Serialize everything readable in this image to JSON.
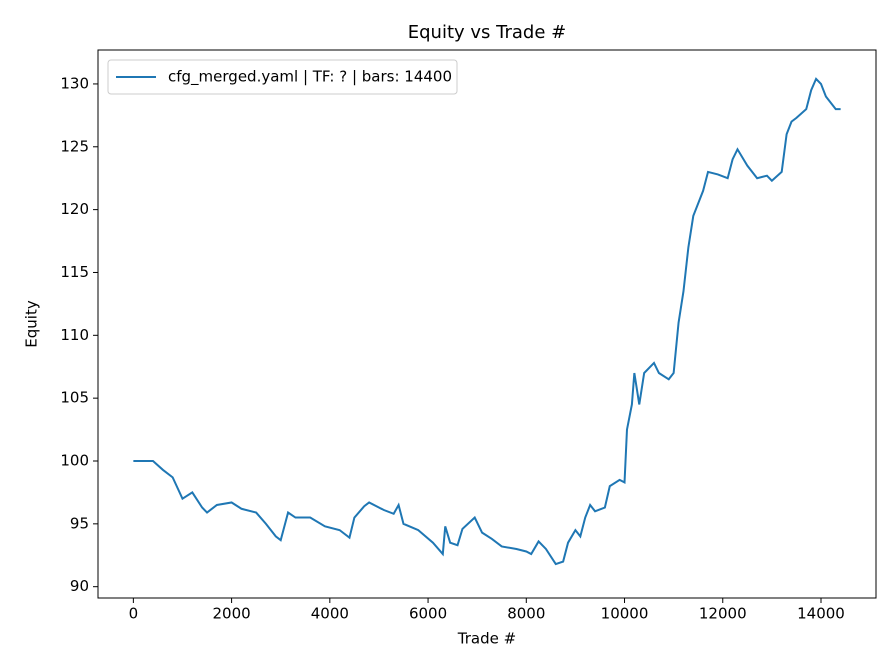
{
  "chart_data": {
    "type": "line",
    "title": "Equity vs Trade #",
    "x_label": "Trade #",
    "y_label": "Equity",
    "legend": "upper left",
    "xlim": [
      -720,
      15120
    ],
    "xticks": [
      0,
      2000,
      4000,
      6000,
      8000,
      10000,
      12000,
      14000
    ],
    "ylim": [
      89.1,
      132.7
    ],
    "yticks": [
      90,
      95,
      100,
      105,
      110,
      115,
      120,
      125,
      130
    ],
    "x": [
      0,
      400,
      600,
      800,
      1000,
      1200,
      1400,
      1500,
      1700,
      2000,
      2200,
      2500,
      2700,
      2900,
      3000,
      3150,
      3300,
      3600,
      3900,
      4200,
      4400,
      4500,
      4700,
      4800,
      5100,
      5300,
      5400,
      5500,
      5800,
      6100,
      6300,
      6350,
      6450,
      6600,
      6700,
      6950,
      7100,
      7300,
      7500,
      7800,
      8000,
      8100,
      8250,
      8400,
      8600,
      8750,
      8850,
      9000,
      9100,
      9200,
      9300,
      9400,
      9600,
      9700,
      9900,
      10000,
      10050,
      10150,
      10200,
      10300,
      10400,
      10600,
      10700,
      10900,
      11000,
      11100,
      11200,
      11300,
      11400,
      11500,
      11600,
      11700,
      11900,
      12100,
      12200,
      12300,
      12500,
      12700,
      12900,
      13000,
      13200,
      13300,
      13400,
      13500,
      13700,
      13800,
      13900,
      14000,
      14100,
      14300,
      14400
    ],
    "series": [
      {
        "name": "cfg_merged.yaml | TF: ? | bars: 14400",
        "color": "#1f77b4",
        "values": [
          100,
          100,
          99.3,
          98.7,
          97,
          97.5,
          96.3,
          95.9,
          96.5,
          96.7,
          96.2,
          95.9,
          95,
          94,
          93.7,
          95.9,
          95.5,
          95.5,
          94.8,
          94.5,
          93.9,
          95.5,
          96.4,
          96.7,
          96.1,
          95.8,
          96.5,
          95,
          94.5,
          93.5,
          92.6,
          94.8,
          93.5,
          93.3,
          94.6,
          95.5,
          94.3,
          93.8,
          93.2,
          93,
          92.8,
          92.6,
          93.6,
          93,
          91.8,
          92,
          93.5,
          94.5,
          94,
          95.5,
          96.5,
          96,
          96.3,
          98,
          98.5,
          98.3,
          102.5,
          104.5,
          107,
          104.5,
          107,
          107.8,
          107,
          106.5,
          107,
          111,
          113.5,
          117,
          119.5,
          120.5,
          121.5,
          123,
          122.8,
          122.5,
          124,
          124.8,
          123.5,
          122.5,
          122.7,
          122.3,
          123,
          126,
          127,
          127.3,
          128,
          129.5,
          130.4,
          130,
          129,
          128,
          128
        ]
      }
    ]
  }
}
